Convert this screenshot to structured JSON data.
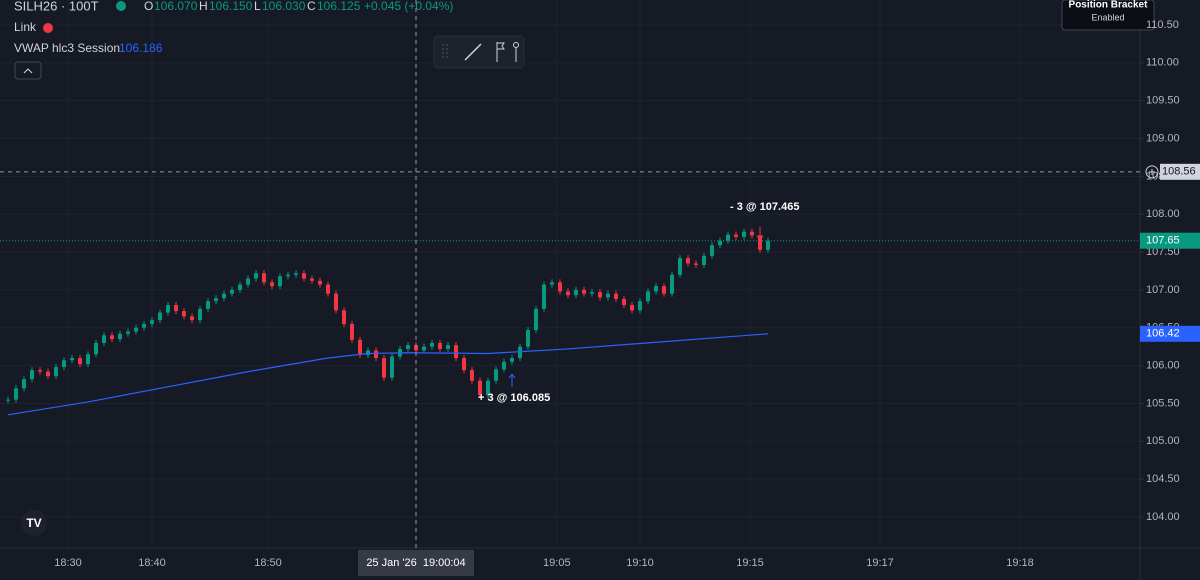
{
  "header": {
    "symbol": "SILH26 · 100T",
    "o_label": "O",
    "open": "106.070",
    "h_label": "H",
    "high": "106.150",
    "l_label": "L",
    "low": "106.030",
    "c_label": "C",
    "close": "106.125",
    "change": "+0.045 (+0.04%)",
    "link": "Link",
    "bracket_title": "Position Bracket",
    "bracket_status": "Enabled"
  },
  "chart_data": {
    "type": "candlestick",
    "up_color": "#089981",
    "down_color": "#f23645",
    "values": [
      105.55,
      105.7,
      105.82,
      105.94,
      105.92,
      105.86,
      105.98,
      106.07,
      106.1,
      106.02,
      106.15,
      106.3,
      106.4,
      106.35,
      106.42,
      106.45,
      106.5,
      106.55,
      106.6,
      106.7,
      106.8,
      106.72,
      106.65,
      106.6,
      106.75,
      106.85,
      106.89,
      106.95,
      107.0,
      107.07,
      107.15,
      107.22,
      107.1,
      107.05,
      107.18,
      107.2,
      107.22,
      107.15,
      107.12,
      107.07,
      106.95,
      106.73,
      106.55,
      106.34,
      106.14,
      106.2,
      106.1,
      105.84,
      106.12,
      106.22,
      106.27,
      106.2,
      106.25,
      106.3,
      106.22,
      106.27,
      106.1,
      105.94,
      105.8,
      105.61,
      105.8,
      105.95,
      106.05,
      106.1,
      106.25,
      106.47,
      106.75,
      107.07,
      107.1,
      106.98,
      106.93,
      107.0,
      106.95,
      106.97,
      106.9,
      106.95,
      106.88,
      106.8,
      106.73,
      106.85,
      106.98,
      107.05,
      106.95,
      107.2,
      107.42,
      107.35,
      107.33,
      107.45,
      107.59,
      107.65,
      107.73,
      107.7,
      107.77,
      107.72,
      107.53,
      107.65
    ],
    "vwap": {
      "name": "VWAP hlc3 Session",
      "legend_value": "106.186",
      "color": "#2962ff",
      "x": [
        0,
        10,
        20,
        30,
        40,
        45,
        50,
        60,
        70,
        80,
        90,
        95
      ],
      "values": [
        105.35,
        105.52,
        105.72,
        105.92,
        106.1,
        106.16,
        106.17,
        106.16,
        106.22,
        106.3,
        106.38,
        106.42
      ]
    },
    "trades": [
      {
        "label": "+ 3 @ 106.085",
        "value": 106.085,
        "x": 63
      },
      {
        "label": "- 3 @ 107.465",
        "value": 107.465,
        "x": 94
      }
    ],
    "crosshair": {
      "x": 51,
      "x_label": "25 Jan '26  19:00:04",
      "y": 108.56
    },
    "xlim": [
      -1,
      141.5
    ],
    "ylim": [
      103.59,
      110.83
    ],
    "xticks": [
      {
        "value": 7.5,
        "label": "18:30"
      },
      {
        "value": 18,
        "label": "18:40"
      },
      {
        "value": 32.5,
        "label": "18:50"
      },
      {
        "value": 68.6,
        "label": "19:05"
      },
      {
        "value": 79,
        "label": "19:10"
      },
      {
        "value": 92.75,
        "label": "19:15"
      },
      {
        "value": 109,
        "label": "19:17"
      },
      {
        "value": 126.5,
        "label": "19:18"
      }
    ],
    "yticks": [
      {
        "value": 104,
        "label": "104.00"
      },
      {
        "value": 104.5,
        "label": "104.50"
      },
      {
        "value": 105,
        "label": "105.00"
      },
      {
        "value": 105.5,
        "label": "105.50"
      },
      {
        "value": 106,
        "label": "106.00"
      },
      {
        "value": 106.5,
        "label": "106.50"
      },
      {
        "value": 107,
        "label": "107.00"
      },
      {
        "value": 107.5,
        "label": "107.50"
      },
      {
        "value": 108,
        "label": "108.00"
      },
      {
        "value": 108.5,
        "label": "108.50"
      },
      {
        "value": 109,
        "label": "109.00"
      },
      {
        "value": 109.5,
        "label": "109.50"
      },
      {
        "value": 110,
        "label": "110.00"
      },
      {
        "value": 110.5,
        "label": "110.50"
      }
    ],
    "grid": true
  }
}
